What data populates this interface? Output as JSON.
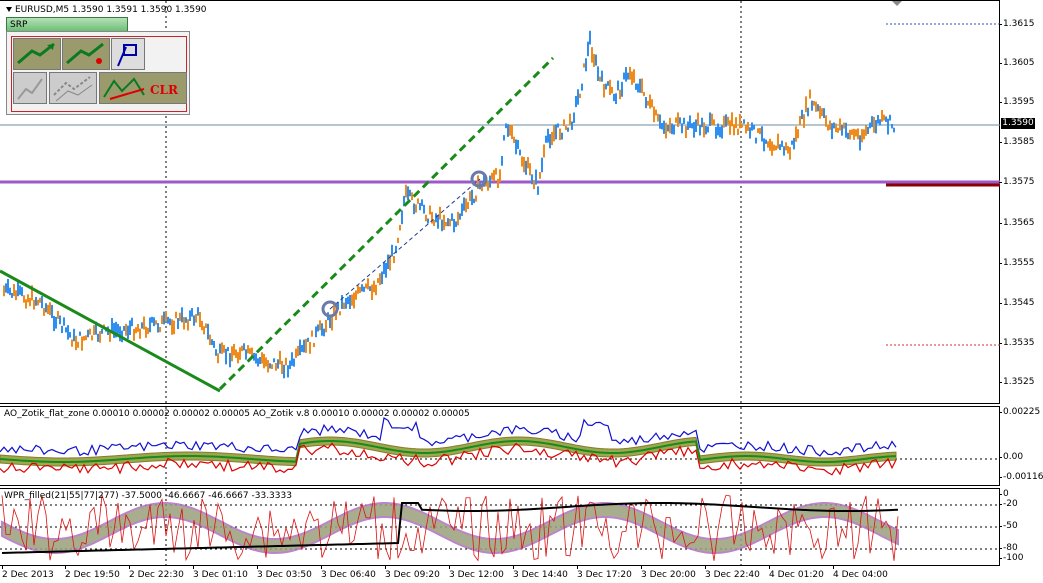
{
  "header": {
    "symbol_info": "EURUSD,M5  1.3590 1.3591 1.3590 1.3590"
  },
  "srp_panel": {
    "tab_label": "SRP",
    "clear_label": "CLR"
  },
  "price_axis": {
    "ticks": [
      "1.3615",
      "1.3605",
      "1.3595",
      "1.3585",
      "1.3575",
      "1.3565",
      "1.3555",
      "1.3545",
      "1.3535",
      "1.3525"
    ],
    "current_price": "1.3590"
  },
  "ao_panel": {
    "title": "AO_Zotik_flat_zone 0.00010 0.00002 0.00002 0.00005  AO_Zotik v.8 0.00010 0.00002 0.00002 0.00005",
    "ticks": [
      "0.00225",
      "0.00",
      "-0.00116"
    ]
  },
  "wpr_panel": {
    "title": "WPR_filled(21|55|77|277) -37.5000 -46.6667 -46.6667 -33.3333",
    "ticks": [
      "0",
      "-20",
      "-50",
      "-80",
      "-100"
    ]
  },
  "time_axis": {
    "ticks": [
      "2 Dec 2013",
      "2 Dec 19:50",
      "2 Dec 22:30",
      "3 Dec 01:10",
      "3 Dec 03:50",
      "3 Dec 06:40",
      "3 Dec 09:20",
      "3 Dec 12:00",
      "3 Dec 14:40",
      "3 Dec 17:20",
      "3 Dec 20:00",
      "3 Dec 22:40",
      "4 Dec 01:20",
      "4 Dec 04:00"
    ]
  },
  "colors": {
    "bull": "#2e8ff0",
    "bear": "#f08a1a",
    "trend": "#1a8a1a",
    "resistance": "#9b59c9",
    "level_red": "#8b0000",
    "ao_fill": "#9aa850",
    "wpr_black": "#000000",
    "wpr_red": "#d11"
  }
}
